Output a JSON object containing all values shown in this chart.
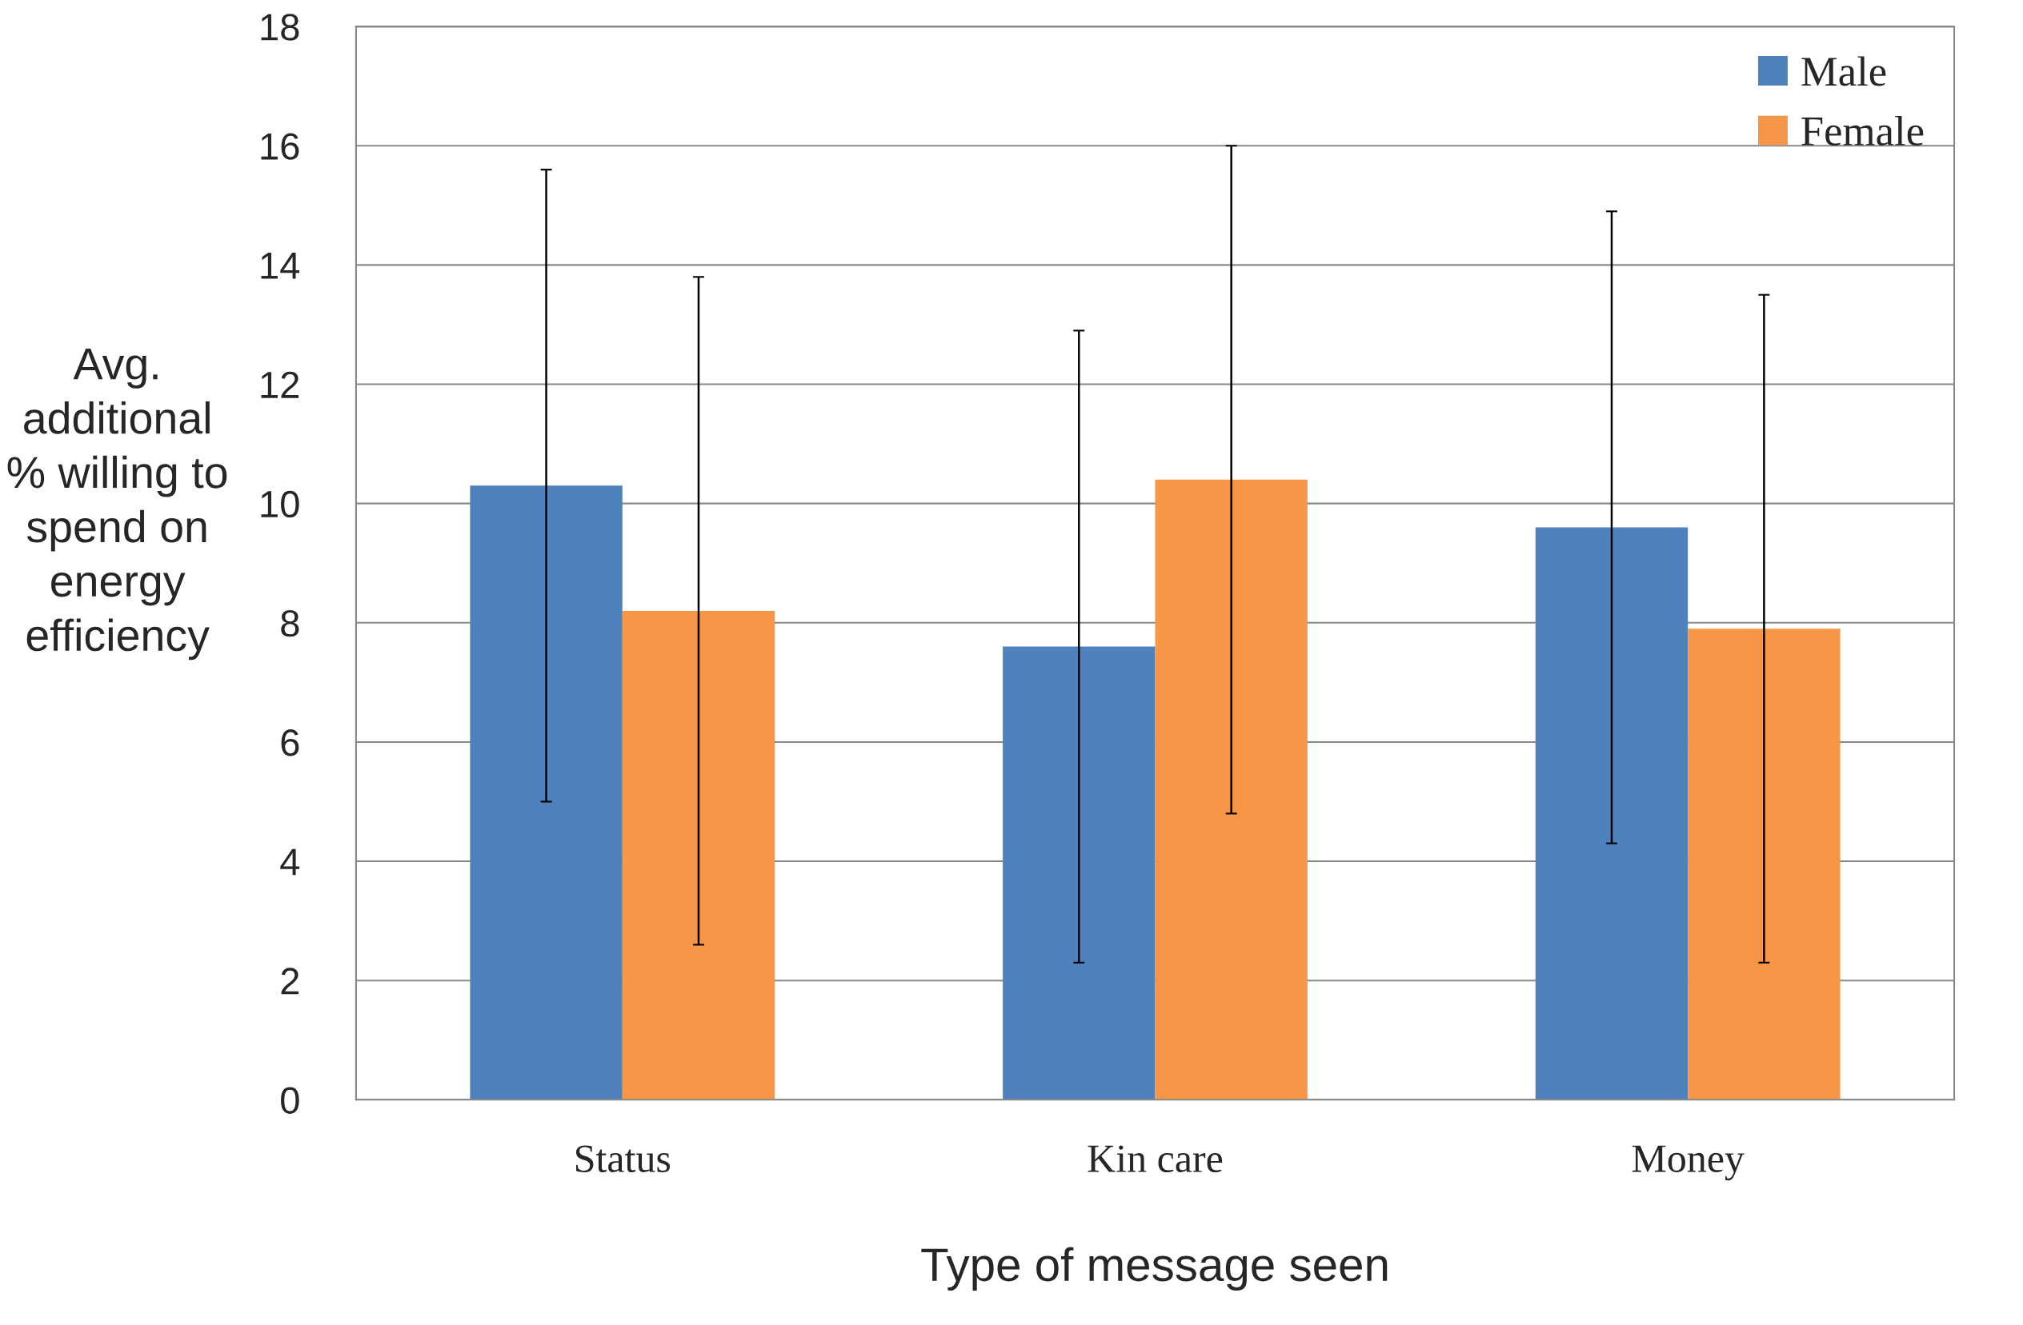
{
  "chart_data": {
    "type": "bar",
    "xlabel": "Type of message seen",
    "ylabel": "Avg. additional % willing to spend on energy efficiency",
    "categories": [
      "Status",
      "Kin care",
      "Money"
    ],
    "series": [
      {
        "name": "Male",
        "color": "#4f81bd",
        "values": [
          10.3,
          7.6,
          9.6
        ],
        "errors": [
          5.3,
          5.3,
          5.3
        ]
      },
      {
        "name": "Female",
        "color": "#f79646",
        "values": [
          8.2,
          10.4,
          7.9
        ],
        "errors": [
          5.6,
          5.6,
          5.6
        ]
      }
    ],
    "ylim": [
      0,
      18
    ],
    "yticks": [
      0,
      2,
      4,
      6,
      8,
      10,
      12,
      14,
      16,
      18
    ],
    "grid": "y",
    "legend": "top right"
  }
}
